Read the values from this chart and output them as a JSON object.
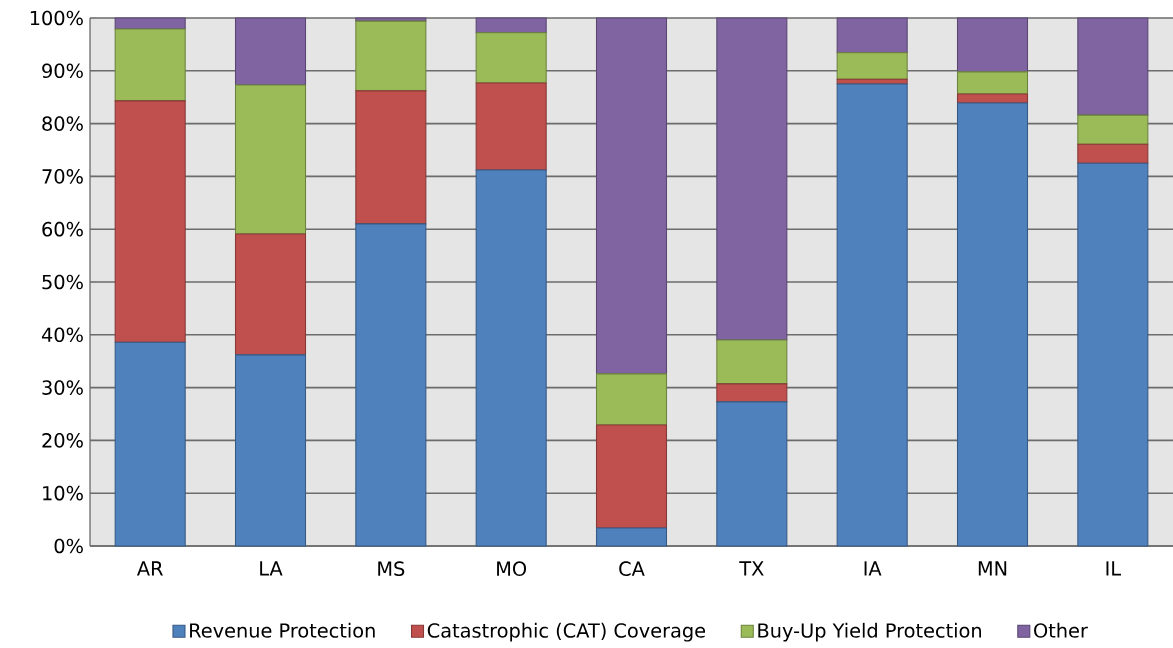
{
  "chart_data": {
    "type": "bar",
    "stacked": true,
    "categories": [
      "AR",
      "LA",
      "MS",
      "MO",
      "CA",
      "TX",
      "IA",
      "MN",
      "IL"
    ],
    "series": [
      {
        "name": "Revenue Protection",
        "color": "#4f81bd",
        "values": [
          38.6,
          36.2,
          61.0,
          71.2,
          3.4,
          27.3,
          87.5,
          83.9,
          72.5
        ]
      },
      {
        "name": "Catastrophic (CAT) Coverage",
        "color": "#c0504d",
        "values": [
          45.7,
          22.9,
          25.2,
          16.5,
          19.5,
          3.4,
          0.9,
          1.7,
          3.6
        ]
      },
      {
        "name": "Buy-Up Yield Protection",
        "color": "#9bbb59",
        "values": [
          13.6,
          28.2,
          13.2,
          9.5,
          9.7,
          8.3,
          5.0,
          4.2,
          5.5
        ]
      },
      {
        "name": "Other",
        "color": "#8064a2",
        "values": [
          2.1,
          12.7,
          0.6,
          2.8,
          67.4,
          61.0,
          6.6,
          10.2,
          18.4
        ]
      }
    ],
    "ylim": [
      0,
      100
    ],
    "yticks": [
      {
        "value": 0,
        "label": "0%"
      },
      {
        "value": 10,
        "label": "10%"
      },
      {
        "value": 20,
        "label": "20%"
      },
      {
        "value": 30,
        "label": "30%"
      },
      {
        "value": 40,
        "label": "40%"
      },
      {
        "value": 50,
        "label": "50%"
      },
      {
        "value": 60,
        "label": "60%"
      },
      {
        "value": 70,
        "label": "70%"
      },
      {
        "value": 80,
        "label": "80%"
      },
      {
        "value": 90,
        "label": "90%"
      },
      {
        "value": 100,
        "label": "100%"
      }
    ],
    "grid": "y",
    "legend": "bottom"
  }
}
